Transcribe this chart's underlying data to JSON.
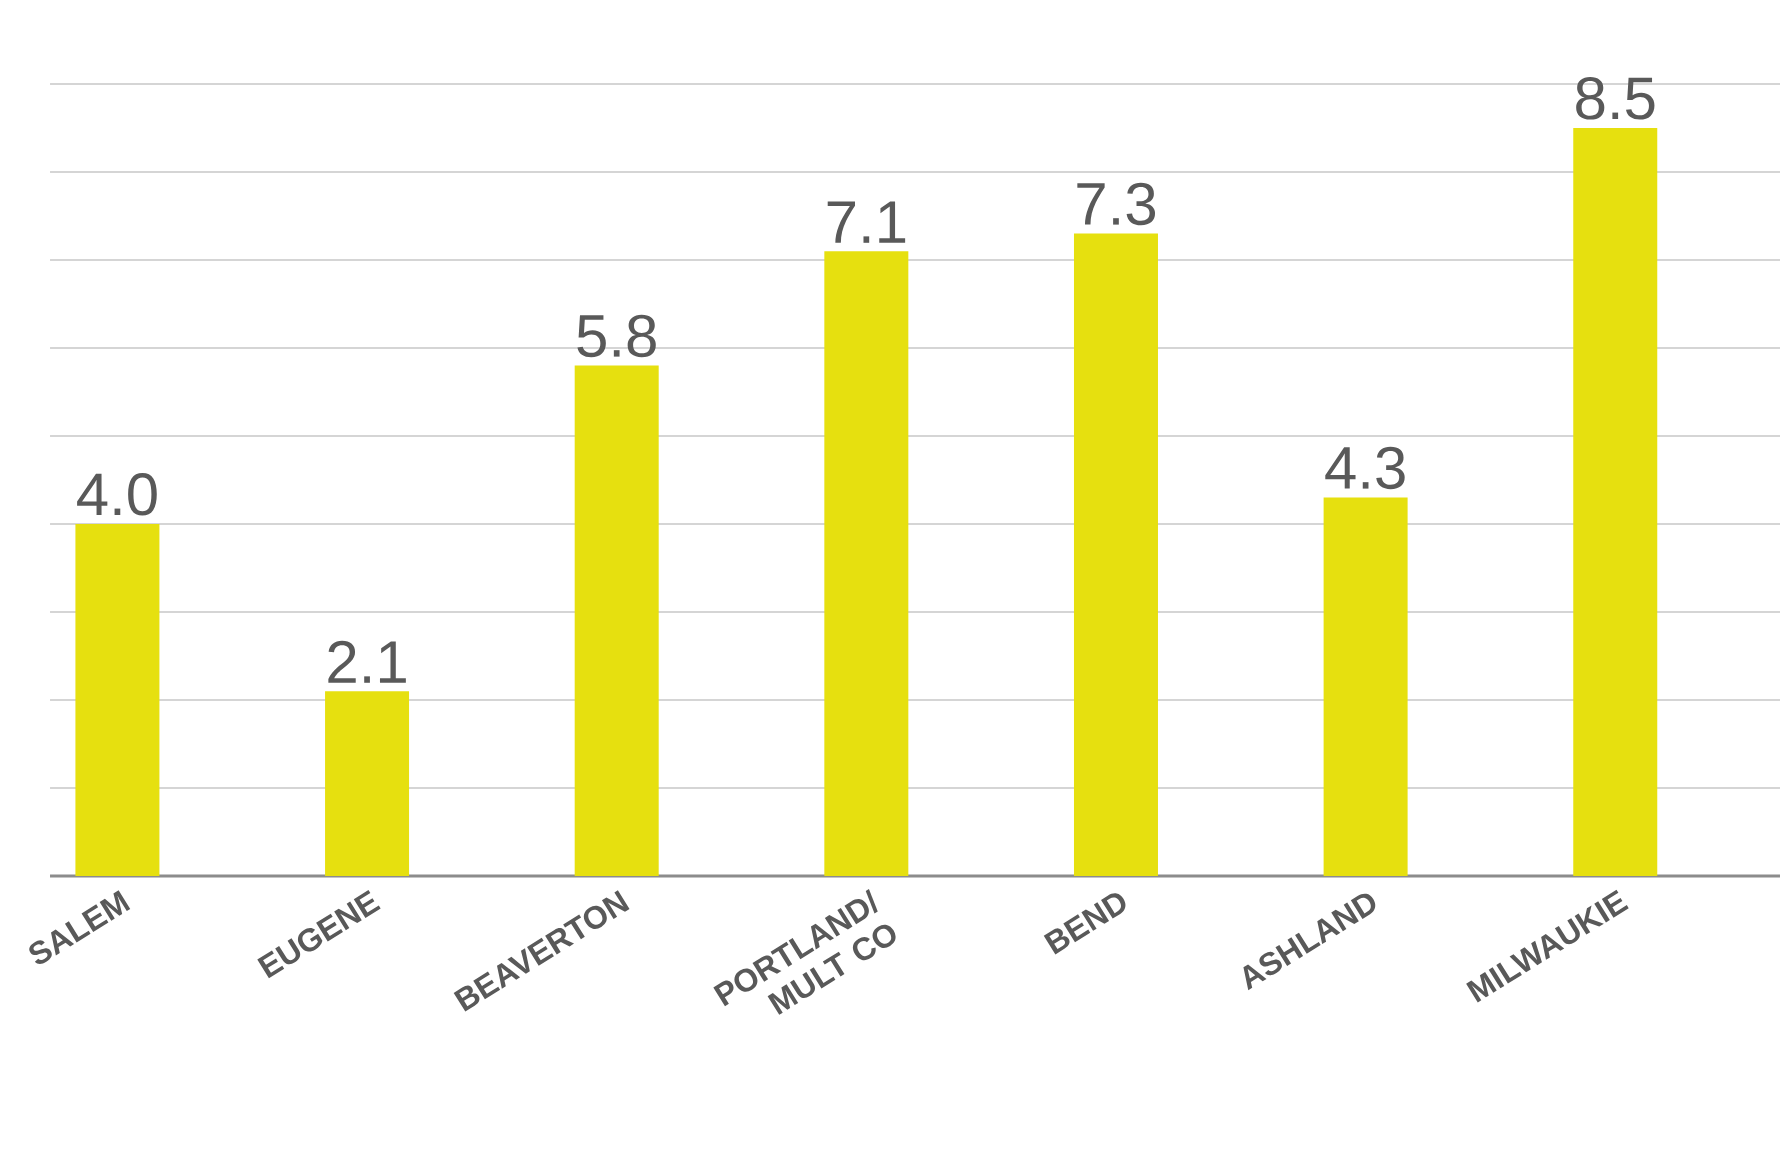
{
  "chart_data": {
    "type": "bar",
    "categories": [
      "SALEM",
      "EUGENE",
      "BEAVERTON",
      "PORTLAND/ MULT CO",
      "BEND",
      "ASHLAND",
      "MILWAUKIE"
    ],
    "values": [
      4.0,
      2.1,
      5.8,
      7.1,
      7.3,
      4.3,
      8.5
    ],
    "value_labels": [
      "4.0",
      "2.1",
      "5.8",
      "7.1",
      "7.3",
      "4.3",
      "8.5"
    ],
    "color": "#e6e00f",
    "ylim": [
      0,
      9
    ],
    "yticks": [
      {
        "value": 0,
        "label": null
      },
      {
        "value": 1,
        "label": null
      },
      {
        "value": 2,
        "label": null
      },
      {
        "value": 3,
        "label": null
      },
      {
        "value": 4,
        "label": null
      },
      {
        "value": 5,
        "label": null
      },
      {
        "value": 6,
        "label": null
      },
      {
        "value": 7,
        "label": null
      },
      {
        "value": 8,
        "label": null
      },
      {
        "value": 9,
        "label": null
      }
    ],
    "grid": "y",
    "tick_labels": "x"
  }
}
